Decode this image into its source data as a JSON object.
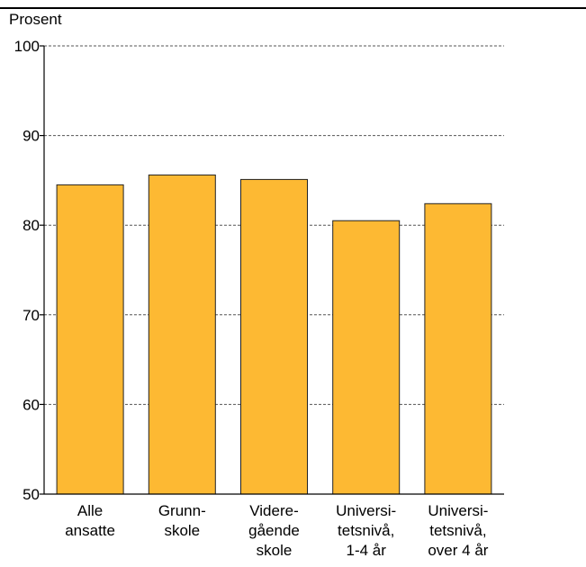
{
  "chart_data": {
    "type": "bar",
    "title": "",
    "xlabel": "",
    "ylabel": "Prosent",
    "ylim": [
      50,
      100
    ],
    "yticks": [
      50,
      60,
      70,
      80,
      90,
      100
    ],
    "grid": true,
    "categories": [
      [
        "Alle",
        "ansatte"
      ],
      [
        "Grunn-",
        "skole"
      ],
      [
        "Videre-",
        "gående",
        "skole"
      ],
      [
        "Universi-",
        "tetsnivå,",
        "1-4 år"
      ],
      [
        "Universi-",
        "tetsnivå,",
        "over 4 år"
      ]
    ],
    "values": [
      84.5,
      85.6,
      85.1,
      80.5,
      82.4
    ],
    "colors": {
      "bar": "#FDB933",
      "bar_stroke": "#222222",
      "grid": "#555555"
    }
  }
}
